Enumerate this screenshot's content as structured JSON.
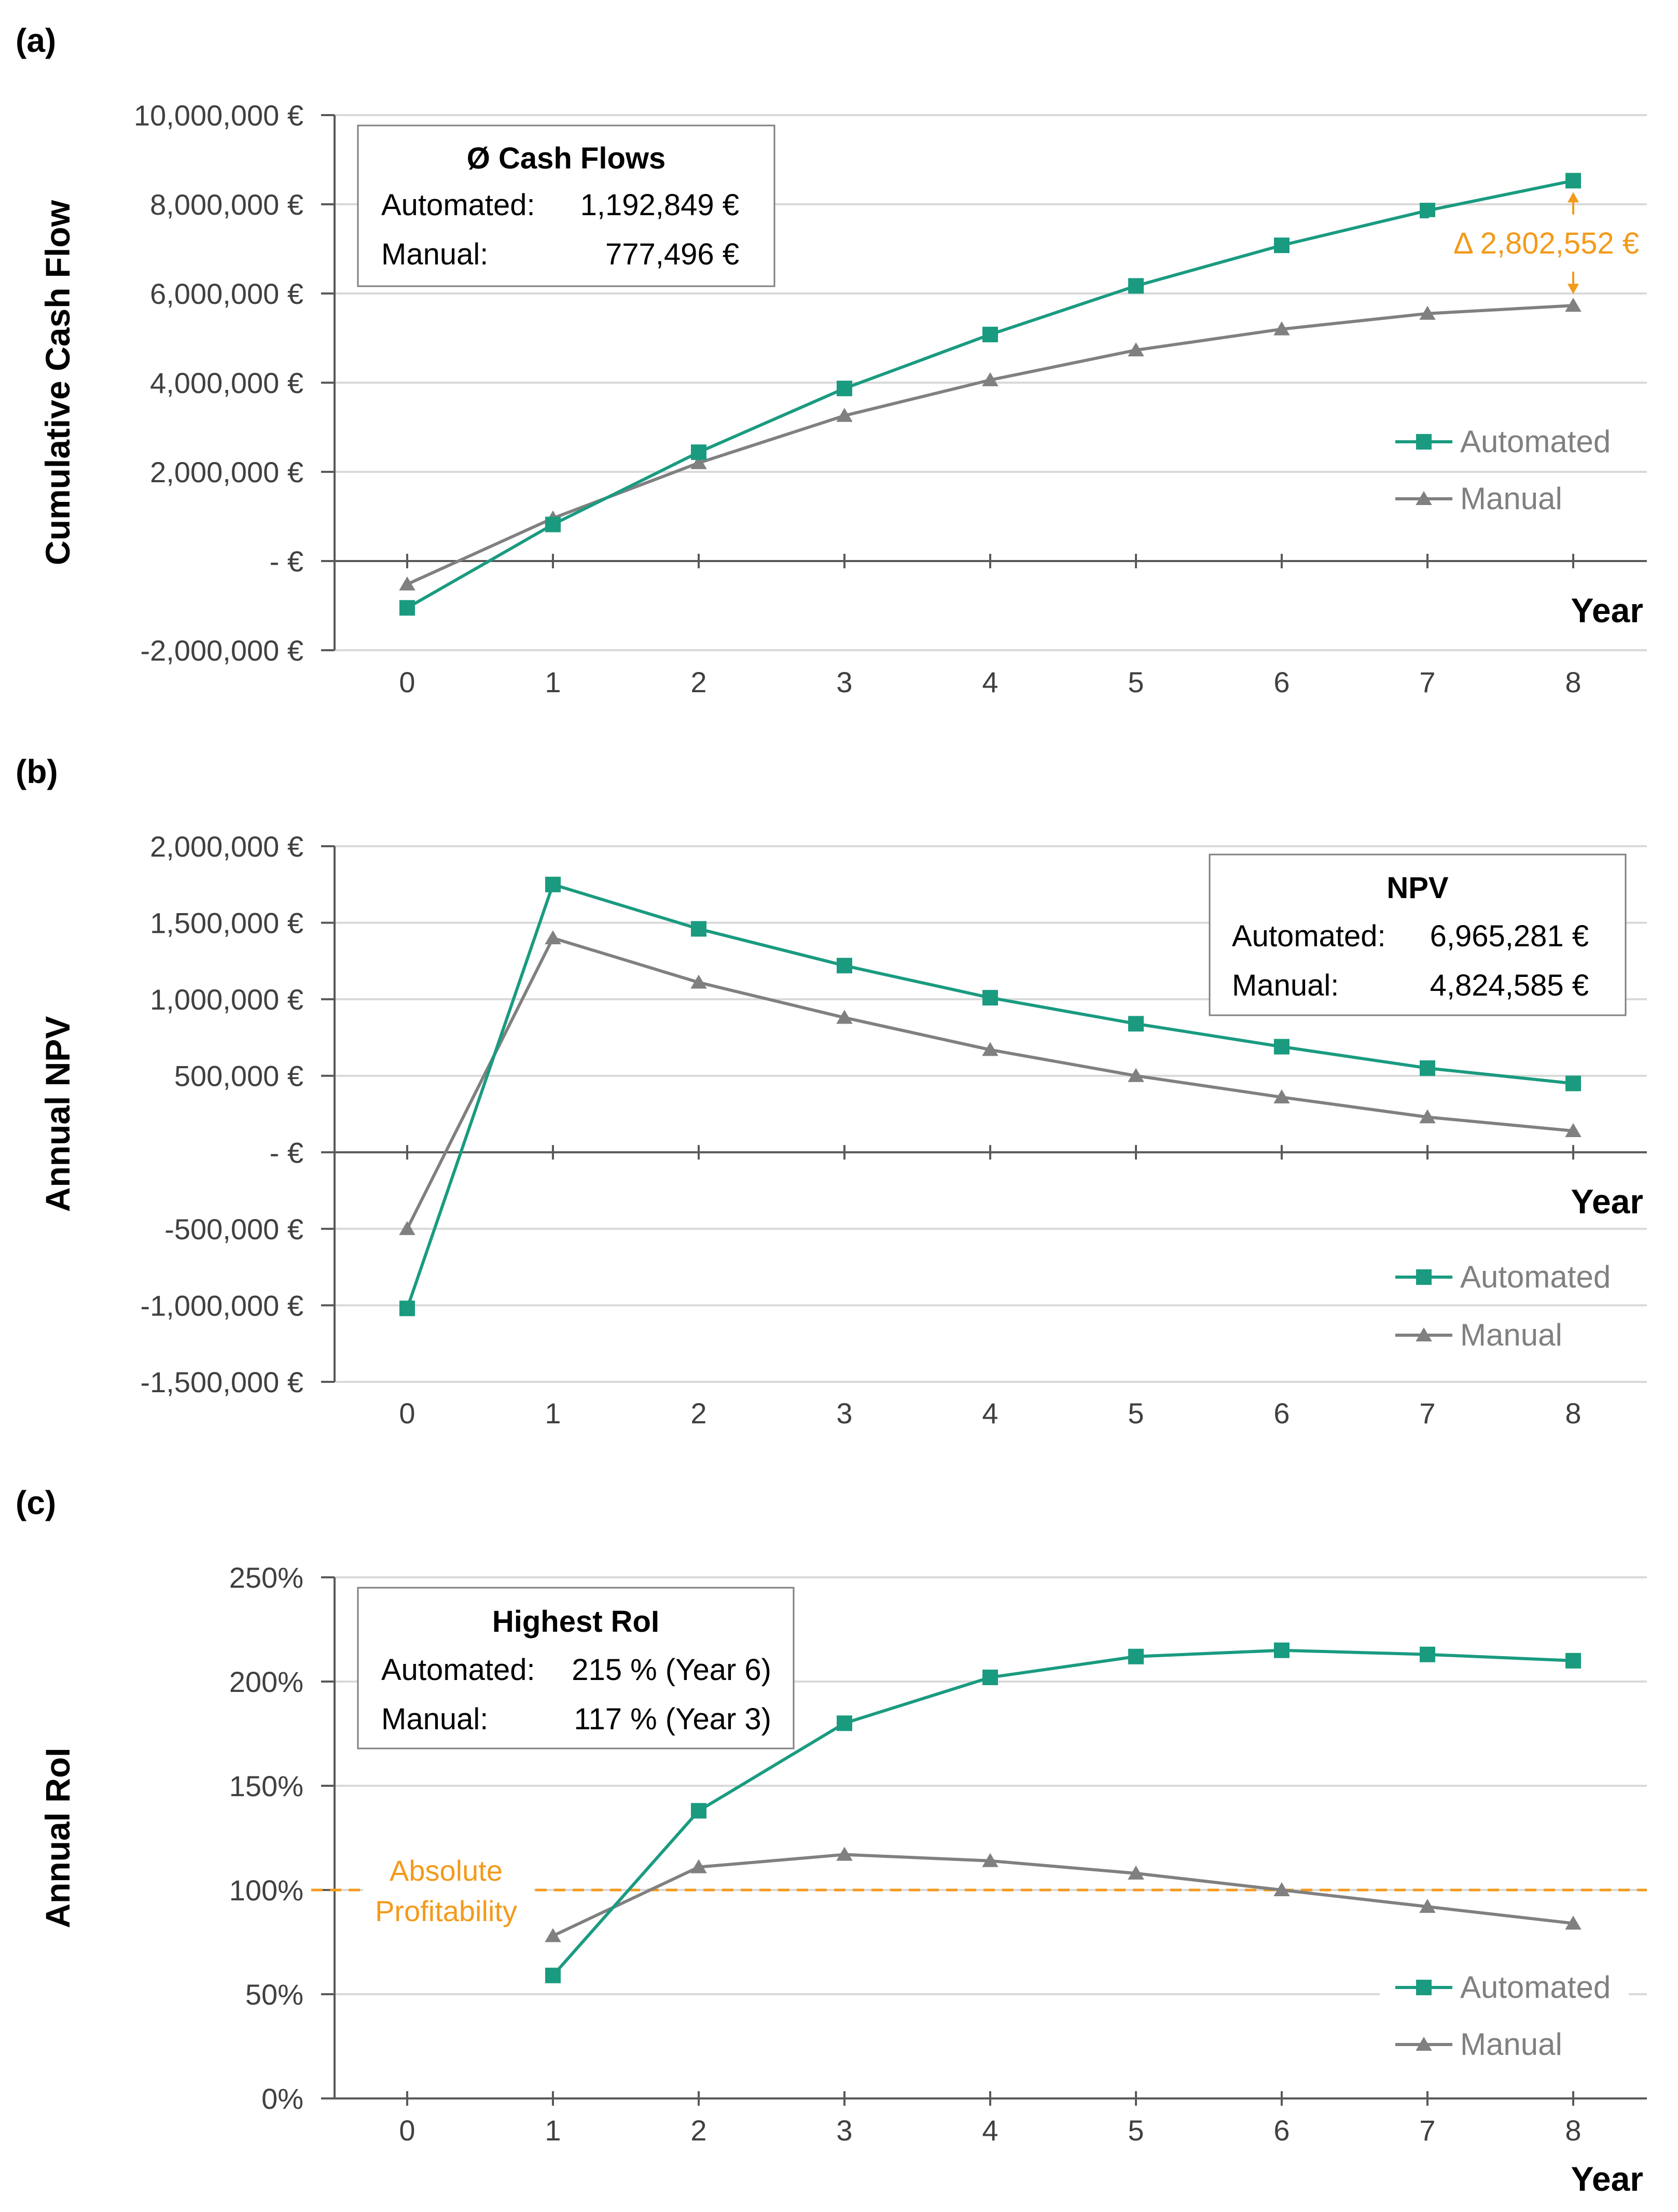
{
  "colors": {
    "automated": "#1a9b80",
    "manual": "#808080",
    "accent": "#f39a1b",
    "axis": "#595959",
    "grid": "#d9d9d9",
    "text": "#404040"
  },
  "chart_data": [
    {
      "panel": "(a)",
      "type": "line",
      "ylabel": "Cumulative Cash Flow",
      "xlabel": "Year",
      "categories": [
        "0",
        "1",
        "2",
        "3",
        "4",
        "5",
        "6",
        "7",
        "8"
      ],
      "ylim": [
        -2000000,
        10000000
      ],
      "y_ticks": [
        {
          "value": 10000000,
          "label": "10,000,000 €"
        },
        {
          "value": 8000000,
          "label": "8,000,000 €"
        },
        {
          "value": 6000000,
          "label": "6,000,000 €"
        },
        {
          "value": 4000000,
          "label": "4,000,000 €"
        },
        {
          "value": 2000000,
          "label": "2,000,000 €"
        },
        {
          "value": 0,
          "label": "-  €"
        },
        {
          "value": -2000000,
          "label": "-2,000,000 €"
        }
      ],
      "grid": true,
      "legend": "right",
      "series": [
        {
          "name": "Automated",
          "marker": "square",
          "values": [
            -1050000,
            820000,
            2440000,
            3870000,
            5080000,
            6170000,
            7080000,
            7860000,
            8530000
          ]
        },
        {
          "name": "Manual",
          "marker": "triangle",
          "values": [
            -520000,
            960000,
            2200000,
            3260000,
            4060000,
            4730000,
            5200000,
            5550000,
            5730000
          ]
        }
      ],
      "info_box": {
        "title": "Ø Cash Flows",
        "rows": [
          {
            "label": "Automated:",
            "value": "1,192,849 €"
          },
          {
            "label": "Manual:",
            "value": "777,496 €"
          }
        ]
      },
      "annotation": {
        "text": "Δ 2,802,552 €",
        "x": "8",
        "y_from": 5730000,
        "y_to": 8530000
      }
    },
    {
      "panel": "(b)",
      "type": "line",
      "ylabel": "Annual NPV",
      "xlabel": "Year",
      "categories": [
        "0",
        "1",
        "2",
        "3",
        "4",
        "5",
        "6",
        "7",
        "8"
      ],
      "ylim": [
        -1500000,
        2000000
      ],
      "y_ticks": [
        {
          "value": 2000000,
          "label": "2,000,000 €"
        },
        {
          "value": 1500000,
          "label": "1,500,000 €"
        },
        {
          "value": 1000000,
          "label": "1,000,000 €"
        },
        {
          "value": 500000,
          "label": "500,000 €"
        },
        {
          "value": 0,
          "label": "-  €"
        },
        {
          "value": -500000,
          "label": "-500,000 €"
        },
        {
          "value": -1000000,
          "label": "-1,000,000 €"
        },
        {
          "value": -1500000,
          "label": "-1,500,000 €"
        }
      ],
      "grid": true,
      "legend": "bottom-right",
      "series": [
        {
          "name": "Automated",
          "marker": "square",
          "values": [
            -1020000,
            1750000,
            1460000,
            1220000,
            1010000,
            840000,
            690000,
            550000,
            450000
          ]
        },
        {
          "name": "Manual",
          "marker": "triangle",
          "values": [
            -500000,
            1400000,
            1110000,
            880000,
            670000,
            500000,
            360000,
            230000,
            140000
          ]
        }
      ],
      "info_box": {
        "title": "NPV",
        "rows": [
          {
            "label": "Automated:",
            "value": "6,965,281 €"
          },
          {
            "label": "Manual:",
            "value": "4,824,585 €"
          }
        ]
      }
    },
    {
      "panel": "(c)",
      "type": "line",
      "ylabel": "Annual RoI",
      "xlabel": "Year",
      "categories": [
        "0",
        "1",
        "2",
        "3",
        "4",
        "5",
        "6",
        "7",
        "8"
      ],
      "ylim": [
        0,
        250
      ],
      "y_ticks": [
        {
          "value": 250,
          "label": "250%"
        },
        {
          "value": 200,
          "label": "200%"
        },
        {
          "value": 150,
          "label": "150%"
        },
        {
          "value": 100,
          "label": "100%"
        },
        {
          "value": 50,
          "label": "50%"
        },
        {
          "value": 0,
          "label": "0%"
        }
      ],
      "grid": true,
      "legend": "bottom-right",
      "series": [
        {
          "name": "Automated",
          "marker": "square",
          "values": [
            null,
            59,
            138,
            180,
            202,
            212,
            215,
            213,
            210
          ]
        },
        {
          "name": "Manual",
          "marker": "triangle",
          "values": [
            null,
            78,
            111,
            117,
            114,
            108,
            100,
            92,
            84
          ]
        }
      ],
      "info_box": {
        "title": "Highest RoI",
        "rows": [
          {
            "label": "Automated:",
            "value": "215 % (Year 6)"
          },
          {
            "label": "Manual:",
            "value": "117 % (Year 3)"
          }
        ]
      },
      "reference_line": {
        "value": 100,
        "label_lines": [
          "Absolute",
          "Profitability"
        ]
      }
    }
  ]
}
